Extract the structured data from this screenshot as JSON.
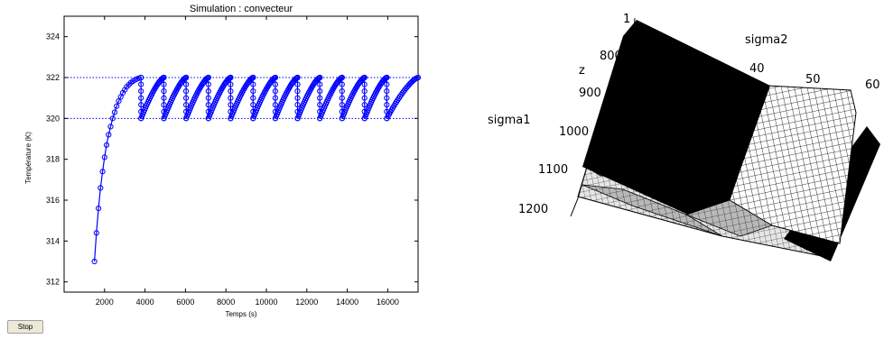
{
  "window": {
    "stop_label": "Stop"
  },
  "chart_data": {
    "type": "line",
    "title": "Simulation : convecteur",
    "xlabel": "Temps (s)",
    "ylabel": "Température (K)",
    "xlim": [
      0,
      17500
    ],
    "ylim": [
      311.5,
      325
    ],
    "xticks": [
      2000,
      4000,
      6000,
      8000,
      10000,
      12000,
      14000,
      16000
    ],
    "yticks": [
      312,
      314,
      316,
      318,
      320,
      322,
      324
    ],
    "reference_lines": [
      320,
      322
    ],
    "grid": false,
    "series": [
      {
        "marker": "circle",
        "color": "#0000ff",
        "rise": {
          "x": [
            1400,
            1500,
            1600,
            1700,
            1800,
            1900,
            2000,
            2100,
            2200,
            2300,
            2400,
            2500,
            2600,
            2700,
            2800,
            2900,
            3000,
            3100,
            3200,
            3300,
            3400,
            3500,
            3600,
            3700,
            3800
          ],
          "y": [
            311.3,
            313.0,
            314.4,
            315.6,
            316.6,
            317.4,
            318.1,
            318.7,
            319.2,
            319.6,
            320.0,
            320.3,
            320.6,
            320.85,
            321.05,
            321.25,
            321.4,
            321.55,
            321.65,
            321.75,
            321.82,
            321.88,
            321.93,
            321.97,
            322.0
          ]
        },
        "cycles_start": [
          3800,
          4930,
          6030,
          7130,
          8230,
          9340,
          10440,
          11540,
          12640,
          13740,
          14850,
          15950
        ],
        "cycles_end": [
          4930,
          6030,
          7130,
          8230,
          9340,
          10440,
          11540,
          12640,
          13740,
          14850,
          15950,
          17500
        ],
        "cycle_low": 320.0,
        "cycle_high": 322.0
      }
    ]
  },
  "surface3d": {
    "axis_labels": {
      "z": "z",
      "sigma1": "sigma1",
      "sigma2": "sigma2"
    },
    "z_ticks": [
      "1",
      "800",
      "900",
      "1000",
      "1100",
      "1200"
    ],
    "sigma2_ticks": [
      "40",
      "50",
      "60"
    ]
  }
}
